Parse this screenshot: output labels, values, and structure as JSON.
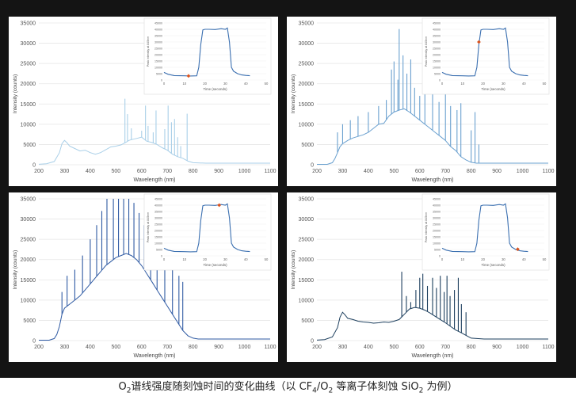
{
  "caption": {
    "parts": [
      {
        "t": "O",
        "sub": false
      },
      {
        "t": "2",
        "sub": true
      },
      {
        "t": "谱线强度随刻蚀时间的变化曲线（以 CF",
        "sub": false
      },
      {
        "t": "4",
        "sub": true
      },
      {
        "t": "/O",
        "sub": false
      },
      {
        "t": "2",
        "sub": true
      },
      {
        "t": " 等离子体刻蚀 SiO",
        "sub": false
      },
      {
        "t": "2",
        "sub": true
      },
      {
        "t": " 为例）",
        "sub": false
      }
    ]
  },
  "chart_data": [
    {
      "type": "line",
      "panel": "top-left",
      "color": "#a9cfe8",
      "xlabel": "Wavelength (nm)",
      "ylabel": "Intensity (counts)",
      "xlim": [
        200,
        1100
      ],
      "ylim": [
        0,
        35000
      ],
      "xticks": [
        200,
        300,
        400,
        500,
        600,
        700,
        800,
        900,
        1000,
        1100
      ],
      "yticks": [
        0,
        5000,
        10000,
        15000,
        20000,
        25000,
        30000,
        35000
      ],
      "x": [
        200,
        230,
        260,
        280,
        290,
        300,
        310,
        320,
        340,
        360,
        380,
        400,
        420,
        440,
        460,
        480,
        500,
        520,
        540,
        550,
        560,
        580,
        600,
        620,
        640,
        660,
        680,
        700,
        720,
        740,
        760,
        780,
        800,
        850,
        900,
        1000,
        1100
      ],
      "y": [
        120,
        250,
        800,
        3000,
        5200,
        6000,
        5400,
        4600,
        4000,
        3400,
        3600,
        3000,
        2600,
        3000,
        3700,
        4400,
        4600,
        4900,
        5600,
        6000,
        6200,
        6500,
        6800,
        5800,
        5500,
        5000,
        4200,
        3600,
        2600,
        2000,
        1600,
        900,
        500,
        400,
        400,
        400,
        400
      ],
      "peaks": [
        {
          "x": 535,
          "y": 16300
        },
        {
          "x": 545,
          "y": 12500
        },
        {
          "x": 560,
          "y": 9000
        },
        {
          "x": 600,
          "y": 8400
        },
        {
          "x": 615,
          "y": 14600
        },
        {
          "x": 625,
          "y": 9600
        },
        {
          "x": 645,
          "y": 8000
        },
        {
          "x": 656,
          "y": 13400
        },
        {
          "x": 690,
          "y": 8800
        },
        {
          "x": 703,
          "y": 14600
        },
        {
          "x": 716,
          "y": 10500
        },
        {
          "x": 728,
          "y": 11300
        },
        {
          "x": 740,
          "y": 6800
        },
        {
          "x": 752,
          "y": 4600
        },
        {
          "x": 777,
          "y": 12600
        }
      ],
      "inset": {
        "ylabel": "Peak intensity at 845nm",
        "xlabel": "Time (seconds)",
        "xlim": [
          0,
          50
        ],
        "ylim": [
          0,
          45000
        ],
        "xticks": [
          0,
          10,
          20,
          30,
          40,
          50
        ],
        "yticks": [
          0,
          5000,
          10000,
          15000,
          20000,
          25000,
          30000,
          35000,
          40000,
          45000
        ],
        "x": [
          0,
          2,
          5,
          10,
          13,
          16,
          17,
          18,
          19,
          20,
          22,
          25,
          28,
          30,
          31,
          32,
          33,
          34,
          36,
          38,
          40,
          42
        ],
        "y": [
          6000,
          4500,
          3500,
          3300,
          3200,
          3300,
          10000,
          28000,
          39500,
          40000,
          40000,
          39800,
          40500,
          40000,
          41000,
          30000,
          10000,
          7000,
          5000,
          4000,
          3600,
          3400
        ],
        "marker": {
          "x": 12,
          "y": 3200
        }
      }
    },
    {
      "type": "line",
      "panel": "top-right",
      "color": "#6aa0cf",
      "xlabel": "Wavelength (nm)",
      "ylabel": "Intensity (counts)",
      "xlim": [
        200,
        1100
      ],
      "ylim": [
        0,
        35000
      ],
      "xticks": [
        200,
        300,
        400,
        500,
        600,
        700,
        800,
        900,
        1000,
        1100
      ],
      "yticks": [
        0,
        5000,
        10000,
        15000,
        20000,
        25000,
        30000,
        35000
      ],
      "x": [
        200,
        240,
        260,
        270,
        280,
        290,
        300,
        320,
        340,
        360,
        380,
        400,
        420,
        440,
        460,
        480,
        500,
        520,
        540,
        560,
        580,
        600,
        620,
        640,
        660,
        680,
        700,
        720,
        740,
        760,
        780,
        800,
        820,
        840,
        860,
        900,
        1000,
        1100
      ],
      "y": [
        100,
        100,
        500,
        1500,
        3000,
        4500,
        5200,
        6000,
        6600,
        7000,
        7400,
        8000,
        9000,
        10000,
        10200,
        12000,
        13000,
        13500,
        13800,
        13000,
        12000,
        11000,
        10000,
        9000,
        8000,
        7000,
        6000,
        4500,
        3500,
        2000,
        1200,
        600,
        400,
        400,
        400,
        400,
        400,
        400
      ],
      "peaks": [
        {
          "x": 280,
          "y": 8000
        },
        {
          "x": 300,
          "y": 10000
        },
        {
          "x": 330,
          "y": 11000
        },
        {
          "x": 360,
          "y": 12000
        },
        {
          "x": 400,
          "y": 13000
        },
        {
          "x": 440,
          "y": 14500
        },
        {
          "x": 470,
          "y": 16000
        },
        {
          "x": 490,
          "y": 23500
        },
        {
          "x": 500,
          "y": 25500
        },
        {
          "x": 515,
          "y": 21000
        },
        {
          "x": 520,
          "y": 33500
        },
        {
          "x": 535,
          "y": 27000
        },
        {
          "x": 550,
          "y": 22500
        },
        {
          "x": 565,
          "y": 26000
        },
        {
          "x": 580,
          "y": 19000
        },
        {
          "x": 600,
          "y": 17000
        },
        {
          "x": 620,
          "y": 19000
        },
        {
          "x": 650,
          "y": 20500
        },
        {
          "x": 675,
          "y": 15500
        },
        {
          "x": 700,
          "y": 18500
        },
        {
          "x": 720,
          "y": 14500
        },
        {
          "x": 745,
          "y": 13500
        },
        {
          "x": 760,
          "y": 15200
        },
        {
          "x": 800,
          "y": 8500
        },
        {
          "x": 815,
          "y": 13000
        },
        {
          "x": 830,
          "y": 5000
        }
      ],
      "inset": {
        "ylabel": "Peak intensity at 845nm",
        "xlabel": "Time (seconds)",
        "xlim": [
          0,
          50
        ],
        "ylim": [
          0,
          45000
        ],
        "xticks": [
          0,
          10,
          20,
          30,
          40,
          50
        ],
        "yticks": [
          0,
          5000,
          10000,
          15000,
          20000,
          25000,
          30000,
          35000,
          40000,
          45000
        ],
        "x": [
          0,
          2,
          5,
          10,
          13,
          16,
          17,
          18,
          19,
          20,
          22,
          25,
          28,
          30,
          31,
          32,
          33,
          34,
          36,
          38,
          40,
          42
        ],
        "y": [
          6000,
          4500,
          3500,
          3300,
          3200,
          3300,
          10000,
          28000,
          39500,
          40000,
          40000,
          39800,
          40500,
          40000,
          41000,
          30000,
          10000,
          7000,
          5000,
          4000,
          3600,
          3400
        ],
        "marker": {
          "x": 18,
          "y": 30000
        }
      }
    },
    {
      "type": "line",
      "panel": "bottom-left",
      "color": "#2f5aa3",
      "xlabel": "Wavelength (nm)",
      "ylabel": "Intensity (counts)",
      "xlim": [
        200,
        1100
      ],
      "ylim": [
        0,
        35000
      ],
      "xticks": [
        200,
        300,
        400,
        500,
        600,
        700,
        800,
        900,
        1000,
        1100
      ],
      "yticks": [
        0,
        5000,
        10000,
        15000,
        20000,
        25000,
        30000,
        35000
      ],
      "x": [
        200,
        240,
        260,
        270,
        280,
        290,
        300,
        320,
        340,
        360,
        380,
        400,
        420,
        440,
        460,
        480,
        500,
        520,
        540,
        560,
        580,
        600,
        620,
        640,
        660,
        680,
        700,
        720,
        740,
        760,
        780,
        800,
        820,
        860,
        900,
        1000,
        1100
      ],
      "y": [
        100,
        100,
        500,
        1500,
        3500,
        6500,
        8000,
        9000,
        10000,
        11000,
        12500,
        14000,
        15500,
        17000,
        18500,
        19500,
        20500,
        21000,
        21500,
        21000,
        20000,
        18500,
        16500,
        14500,
        12500,
        10500,
        8500,
        6500,
        4500,
        2500,
        1200,
        600,
        400,
        400,
        400,
        400,
        400
      ],
      "peaks": [
        {
          "x": 290,
          "y": 12000
        },
        {
          "x": 310,
          "y": 16000
        },
        {
          "x": 340,
          "y": 17500
        },
        {
          "x": 370,
          "y": 21000
        },
        {
          "x": 400,
          "y": 25000
        },
        {
          "x": 425,
          "y": 28500
        },
        {
          "x": 445,
          "y": 32000
        },
        {
          "x": 465,
          "y": 35000
        },
        {
          "x": 490,
          "y": 35000
        },
        {
          "x": 510,
          "y": 35000
        },
        {
          "x": 530,
          "y": 35000
        },
        {
          "x": 550,
          "y": 35000
        },
        {
          "x": 570,
          "y": 34000
        },
        {
          "x": 590,
          "y": 31500
        },
        {
          "x": 610,
          "y": 28500
        },
        {
          "x": 635,
          "y": 26500
        },
        {
          "x": 660,
          "y": 24500
        },
        {
          "x": 690,
          "y": 21000
        },
        {
          "x": 720,
          "y": 18000
        },
        {
          "x": 745,
          "y": 16000
        },
        {
          "x": 760,
          "y": 14500
        }
      ],
      "inset": {
        "ylabel": "Peak intensity at 845nm",
        "xlabel": "Time (seconds)",
        "xlim": [
          0,
          50
        ],
        "ylim": [
          0,
          45000
        ],
        "xticks": [
          0,
          10,
          20,
          30,
          40,
          50
        ],
        "yticks": [
          0,
          5000,
          10000,
          15000,
          20000,
          25000,
          30000,
          35000,
          40000,
          45000
        ],
        "x": [
          0,
          2,
          5,
          10,
          13,
          16,
          17,
          18,
          19,
          20,
          22,
          25,
          28,
          30,
          31,
          32,
          33,
          34,
          36,
          38,
          40,
          42
        ],
        "y": [
          6000,
          4500,
          3500,
          3300,
          3200,
          3300,
          10000,
          28000,
          39500,
          40000,
          40000,
          39800,
          40500,
          40000,
          41000,
          30000,
          10000,
          7000,
          5000,
          4000,
          3600,
          3400
        ],
        "marker": {
          "x": 27,
          "y": 40000
        }
      }
    },
    {
      "type": "line",
      "panel": "bottom-right",
      "color": "#1d3f5e",
      "xlabel": "Wavelength (nm)",
      "ylabel": "Intensity (counts)",
      "xlim": [
        200,
        1100
      ],
      "ylim": [
        0,
        35000
      ],
      "xticks": [
        200,
        300,
        400,
        500,
        600,
        700,
        800,
        900,
        1000,
        1100
      ],
      "yticks": [
        0,
        5000,
        10000,
        15000,
        20000,
        25000,
        30000,
        35000
      ],
      "x": [
        200,
        230,
        260,
        280,
        290,
        300,
        310,
        320,
        340,
        360,
        380,
        400,
        420,
        440,
        460,
        480,
        500,
        520,
        540,
        560,
        580,
        600,
        620,
        640,
        660,
        680,
        700,
        720,
        740,
        760,
        780,
        800,
        850,
        900,
        1000,
        1100
      ],
      "y": [
        120,
        250,
        900,
        3200,
        5800,
        7000,
        6300,
        5500,
        5200,
        4800,
        4600,
        4500,
        4300,
        4400,
        4600,
        4500,
        4800,
        5200,
        6500,
        7800,
        8200,
        8000,
        7500,
        6800,
        6000,
        5200,
        4400,
        3500,
        2600,
        2000,
        1300,
        600,
        400,
        400,
        400,
        400
      ],
      "peaks": [
        {
          "x": 530,
          "y": 17000
        },
        {
          "x": 548,
          "y": 11000
        },
        {
          "x": 565,
          "y": 9500
        },
        {
          "x": 585,
          "y": 12500
        },
        {
          "x": 600,
          "y": 15500
        },
        {
          "x": 612,
          "y": 16500
        },
        {
          "x": 630,
          "y": 13500
        },
        {
          "x": 650,
          "y": 15500
        },
        {
          "x": 665,
          "y": 13000
        },
        {
          "x": 680,
          "y": 16000
        },
        {
          "x": 695,
          "y": 12000
        },
        {
          "x": 706,
          "y": 16000
        },
        {
          "x": 718,
          "y": 11000
        },
        {
          "x": 735,
          "y": 12500
        },
        {
          "x": 750,
          "y": 15500
        },
        {
          "x": 762,
          "y": 9000
        },
        {
          "x": 780,
          "y": 7000
        }
      ],
      "inset": {
        "ylabel": "Peak intensity at 845nm",
        "xlabel": "Time (seconds)",
        "xlim": [
          0,
          50
        ],
        "ylim": [
          0,
          45000
        ],
        "xticks": [
          0,
          10,
          20,
          30,
          40,
          50
        ],
        "yticks": [
          0,
          5000,
          10000,
          15000,
          20000,
          25000,
          30000,
          35000,
          40000,
          45000
        ],
        "x": [
          0,
          2,
          5,
          10,
          13,
          16,
          17,
          18,
          19,
          20,
          22,
          25,
          28,
          30,
          31,
          32,
          33,
          34,
          36,
          38,
          40,
          42
        ],
        "y": [
          6000,
          4500,
          3500,
          3300,
          3200,
          3300,
          10000,
          28000,
          39500,
          40000,
          40000,
          39800,
          40500,
          40000,
          41000,
          30000,
          10000,
          7000,
          5000,
          4000,
          3600,
          3400
        ],
        "marker": {
          "x": 37,
          "y": 5200
        }
      }
    }
  ]
}
